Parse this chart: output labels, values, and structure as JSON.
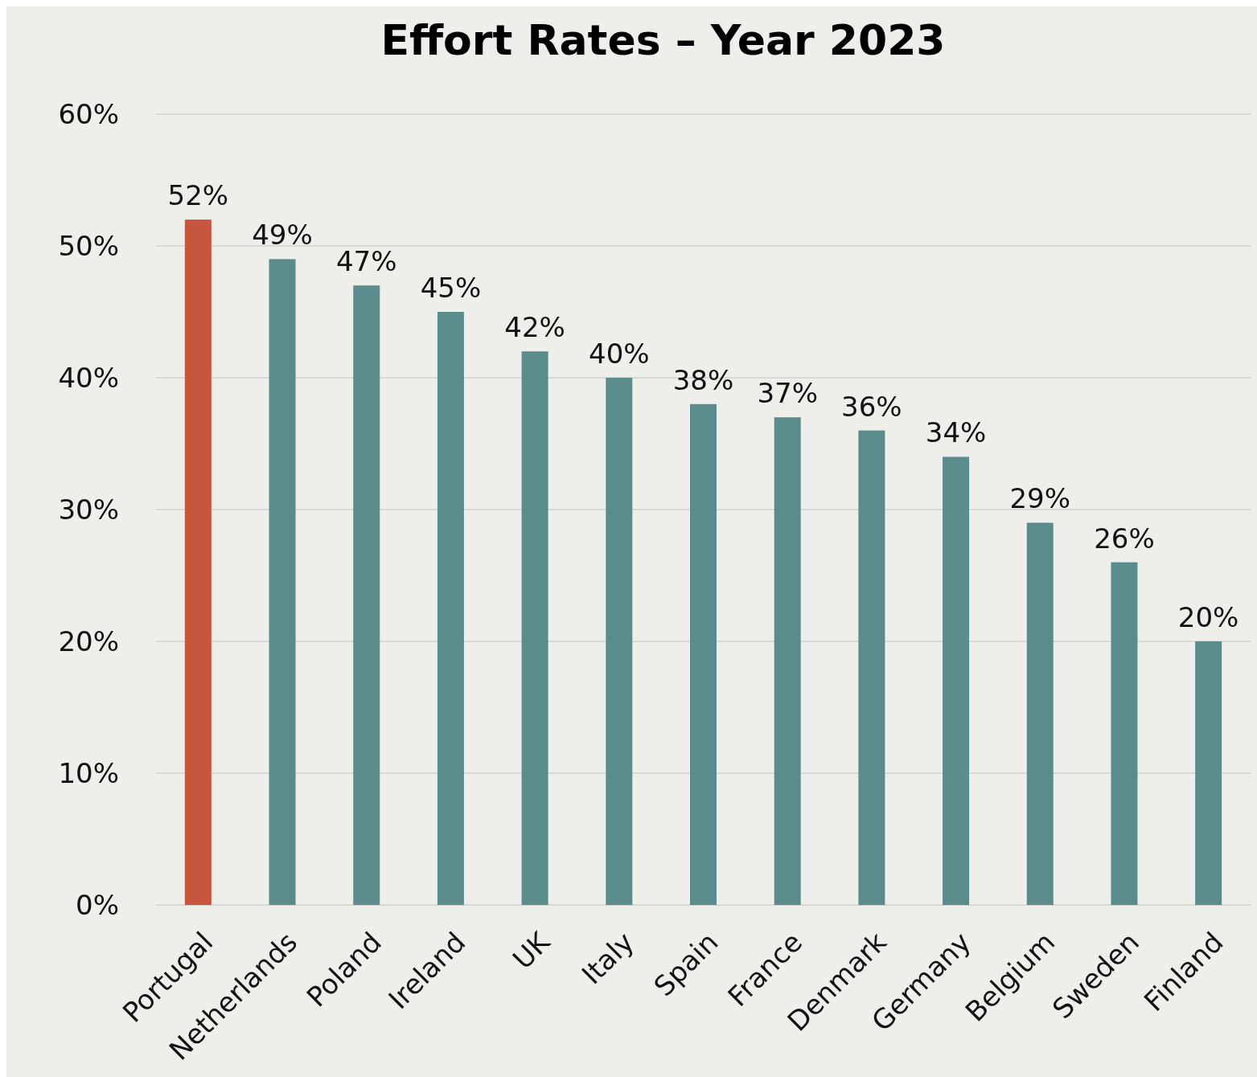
{
  "chart_data": {
    "type": "bar",
    "title": "Effort Rates – Year 2023",
    "categories": [
      "Portugal",
      "Netherlands",
      "Poland",
      "Ireland",
      "UK",
      "Italy",
      "Spain",
      "France",
      "Denmark",
      "Germany",
      "Belgium",
      "Sweden",
      "Finland"
    ],
    "values": [
      52,
      49,
      47,
      45,
      42,
      40,
      38,
      37,
      36,
      34,
      29,
      26,
      20
    ],
    "colors": [
      "#c6563f",
      "#5a8c8c",
      "#5a8c8c",
      "#5a8c8c",
      "#5a8c8c",
      "#5a8c8c",
      "#5a8c8c",
      "#5a8c8c",
      "#5a8c8c",
      "#5a8c8c",
      "#5a8c8c",
      "#5a8c8c",
      "#5a8c8c"
    ],
    "value_labels": [
      "52%",
      "49%",
      "47%",
      "45%",
      "42%",
      "40%",
      "38%",
      "37%",
      "36%",
      "34%",
      "29%",
      "26%",
      "20%"
    ],
    "ylim": [
      0,
      60
    ],
    "yticks": [
      {
        "value": 0,
        "label": "0%"
      },
      {
        "value": 10,
        "label": "10%"
      },
      {
        "value": 20,
        "label": "20%"
      },
      {
        "value": 30,
        "label": "30%"
      },
      {
        "value": 40,
        "label": "40%"
      },
      {
        "value": 50,
        "label": "50%"
      },
      {
        "value": 60,
        "label": "60%"
      }
    ],
    "grid": "y"
  }
}
